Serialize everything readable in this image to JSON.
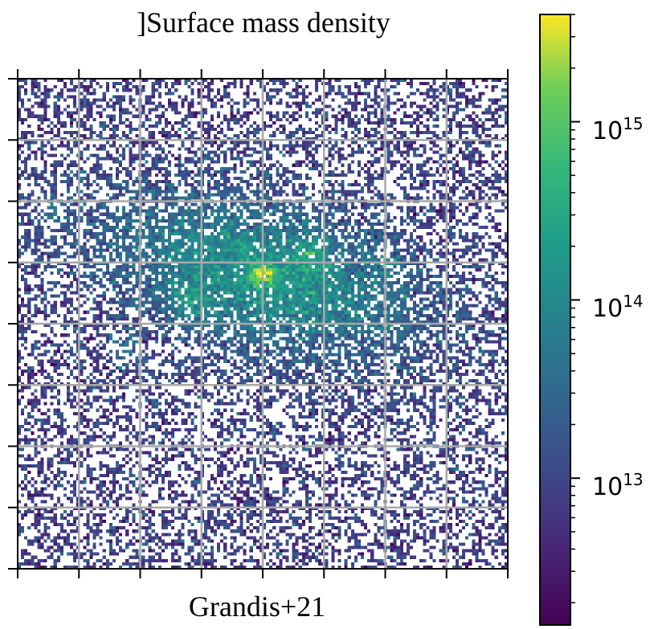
{
  "chart_data": {
    "type": "heatmap",
    "title": "Surface mass density",
    "title_prefix_glyph": "]",
    "caption": "Grandis+21",
    "xlabel": "",
    "ylabel": "",
    "grid": true,
    "grid_divisions": {
      "x": 8,
      "y": 8
    },
    "colormap": "viridis",
    "colorbar": {
      "scale": "log",
      "range": [
        1500000000000.0,
        4000000000000000.0
      ],
      "ticks": [
        {
          "value": 10000000000000.0,
          "base": "10",
          "exponent": "13"
        },
        {
          "value": 100000000000000.0,
          "base": "10",
          "exponent": "14"
        },
        {
          "value": 1000000000000000.0,
          "base": "10",
          "exponent": "15"
        }
      ]
    },
    "peak": {
      "x_frac": 0.5,
      "y_frac": 0.4,
      "value": 3500000000000000.0
    },
    "structure": "elongated filament running from lower-left to right through the centre, sparse noisy background with empty (white) pixels"
  }
}
